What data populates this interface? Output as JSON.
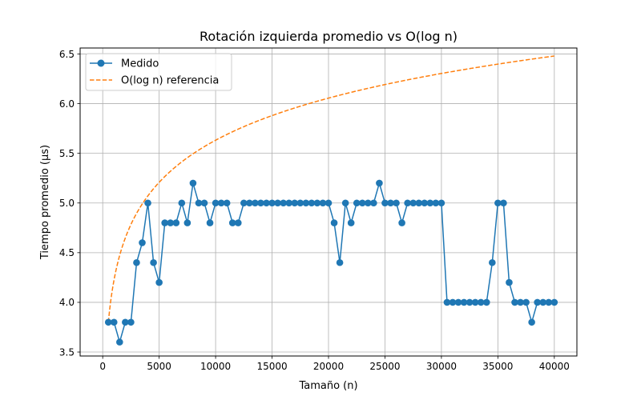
{
  "chart_data": {
    "type": "line",
    "title": "Rotación izquierda promedio vs O(log n)",
    "xlabel": "Tamaño (n)",
    "ylabel": "Tiempo promedio (µs)",
    "xlim": [
      -2000,
      42000
    ],
    "ylim": [
      3.46,
      6.56
    ],
    "xticks": [
      0,
      5000,
      10000,
      15000,
      20000,
      25000,
      30000,
      35000,
      40000
    ],
    "xtick_labels": [
      "0",
      "5000",
      "10000",
      "15000",
      "20000",
      "25000",
      "30000",
      "35000",
      "40000"
    ],
    "yticks": [
      3.5,
      4.0,
      4.5,
      5.0,
      5.5,
      6.0,
      6.5
    ],
    "ytick_labels": [
      "3.5",
      "4.0",
      "4.5",
      "5.0",
      "5.5",
      "6.0",
      "6.5"
    ],
    "grid": true,
    "legend_position": "top-left",
    "series": [
      {
        "name": "Medido",
        "style": "solid-markers",
        "color": "#1f77b4",
        "x": [
          500,
          1000,
          1500,
          2000,
          2500,
          3000,
          3500,
          4000,
          4500,
          5000,
          5500,
          6000,
          6500,
          7000,
          7500,
          8000,
          8500,
          9000,
          9500,
          10000,
          10500,
          11000,
          11500,
          12000,
          12500,
          13000,
          13500,
          14000,
          14500,
          15000,
          15500,
          16000,
          16500,
          17000,
          17500,
          18000,
          18500,
          19000,
          19500,
          20000,
          20500,
          21000,
          21500,
          22000,
          22500,
          23000,
          23500,
          24000,
          24500,
          25000,
          25500,
          26000,
          26500,
          27000,
          27500,
          28000,
          28500,
          29000,
          29500,
          30000,
          30500,
          31000,
          31500,
          32000,
          32500,
          33000,
          33500,
          34000,
          34500,
          35000,
          35500,
          36000,
          36500,
          37000,
          37500,
          38000,
          38500,
          39000,
          39500,
          40000
        ],
        "y": [
          3.8,
          3.8,
          3.6,
          3.8,
          3.8,
          4.4,
          4.6,
          5.0,
          4.4,
          4.2,
          4.8,
          4.8,
          4.8,
          5.0,
          4.8,
          5.2,
          5.0,
          5.0,
          4.8,
          5.0,
          5.0,
          5.0,
          4.8,
          4.8,
          5.0,
          5.0,
          5.0,
          5.0,
          5.0,
          5.0,
          5.0,
          5.0,
          5.0,
          5.0,
          5.0,
          5.0,
          5.0,
          5.0,
          5.0,
          5.0,
          4.8,
          4.4,
          5.0,
          4.8,
          5.0,
          5.0,
          5.0,
          5.0,
          5.2,
          5.0,
          5.0,
          5.0,
          4.8,
          5.0,
          5.0,
          5.0,
          5.0,
          5.0,
          5.0,
          5.0,
          4.0,
          4.0,
          4.0,
          4.0,
          4.0,
          4.0,
          4.0,
          4.0,
          4.4,
          5.0,
          5.0,
          4.2,
          4.0,
          4.0,
          4.0,
          3.8,
          4.0,
          4.0,
          4.0,
          4.0
        ]
      },
      {
        "name": "O(log n) referencia",
        "style": "dashed",
        "color": "#ff7f0e",
        "formula_ref_x": 500,
        "formula_ref_y": 3.8,
        "x_start": 500,
        "x_end": 40000
      }
    ]
  }
}
